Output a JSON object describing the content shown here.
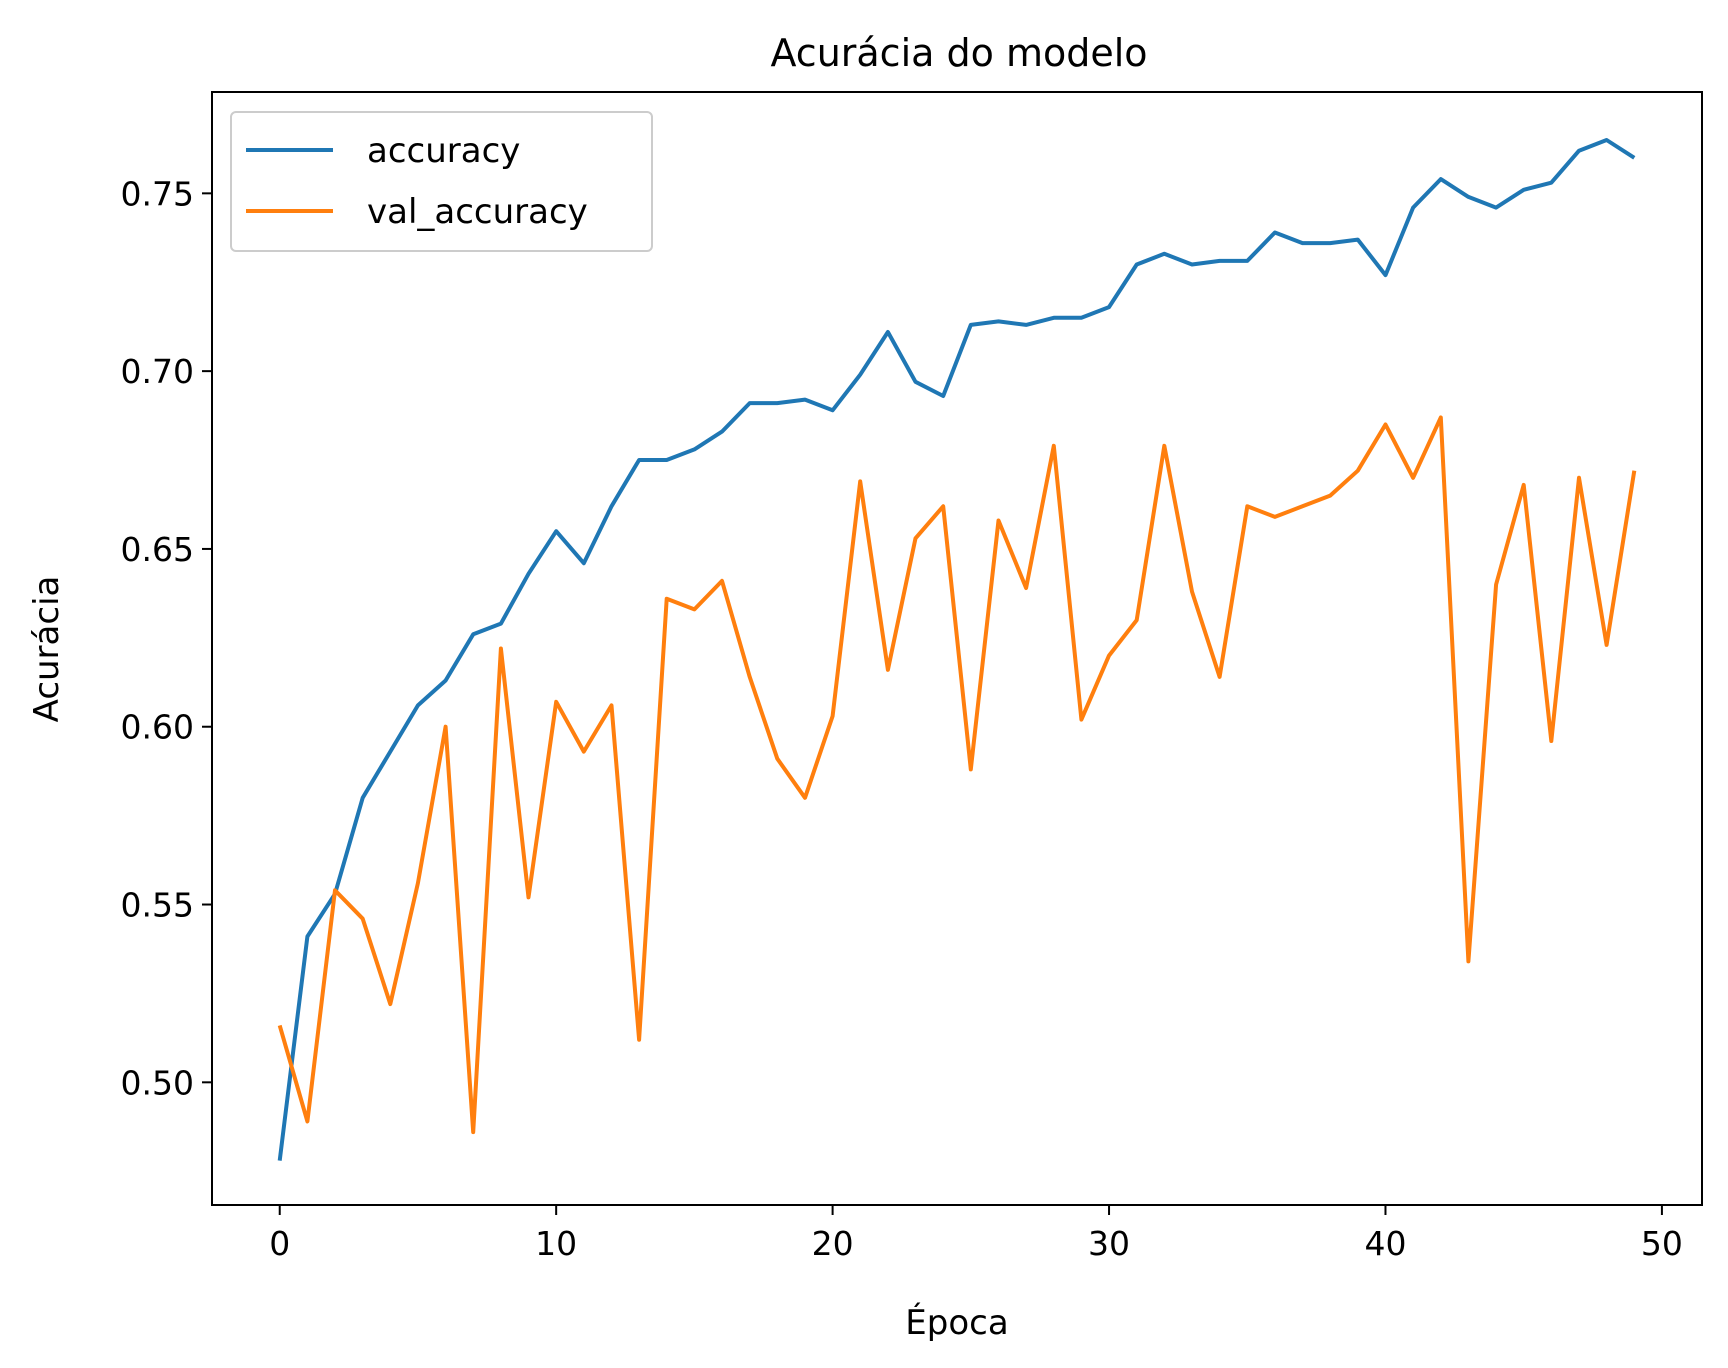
{
  "chart_data": {
    "type": "line",
    "title": "Acurácia do modelo",
    "xlabel": "Época",
    "ylabel": "Acurácia",
    "xlim": [
      -2.45,
      51.45
    ],
    "ylim": [
      0.4655,
      0.7785
    ],
    "x_ticks": [
      0,
      10,
      20,
      30,
      40,
      50
    ],
    "y_ticks": [
      0.5,
      0.55,
      0.6,
      0.65,
      0.7,
      0.75
    ],
    "x_tick_labels": [
      "0",
      "10",
      "20",
      "30",
      "40",
      "50"
    ],
    "y_tick_labels": [
      "0.50",
      "0.55",
      "0.60",
      "0.65",
      "0.70",
      "0.75"
    ],
    "grid": false,
    "legend": "upper left",
    "x": [
      0,
      1,
      2,
      3,
      4,
      5,
      6,
      7,
      8,
      9,
      10,
      11,
      12,
      13,
      14,
      15,
      16,
      17,
      18,
      19,
      20,
      21,
      22,
      23,
      24,
      25,
      26,
      27,
      28,
      29,
      30,
      31,
      32,
      33,
      34,
      35,
      36,
      37,
      38,
      39,
      40,
      41,
      42,
      43,
      44,
      45,
      46,
      47,
      48,
      49
    ],
    "series": [
      {
        "name": "accuracy",
        "color": "#1f77b4",
        "values": [
          0.478,
          0.541,
          0.553,
          0.58,
          0.593,
          0.606,
          0.613,
          0.626,
          0.629,
          0.643,
          0.655,
          0.646,
          0.662,
          0.675,
          0.675,
          0.678,
          0.683,
          0.691,
          0.691,
          0.692,
          0.689,
          0.699,
          0.711,
          0.697,
          0.693,
          0.713,
          0.714,
          0.713,
          0.715,
          0.715,
          0.718,
          0.73,
          0.733,
          0.73,
          0.731,
          0.731,
          0.739,
          0.736,
          0.736,
          0.737,
          0.727,
          0.746,
          0.754,
          0.749,
          0.746,
          0.751,
          0.753,
          0.762,
          0.765,
          0.76
        ]
      },
      {
        "name": "val_accuracy",
        "color": "#ff7f0e",
        "values": [
          0.516,
          0.489,
          0.554,
          0.546,
          0.522,
          0.556,
          0.6,
          0.486,
          0.622,
          0.552,
          0.607,
          0.593,
          0.606,
          0.512,
          0.636,
          0.633,
          0.641,
          0.614,
          0.591,
          0.58,
          0.603,
          0.669,
          0.616,
          0.653,
          0.662,
          0.588,
          0.658,
          0.639,
          0.679,
          0.602,
          0.62,
          0.63,
          0.679,
          0.638,
          0.614,
          0.662,
          0.659,
          0.662,
          0.665,
          0.672,
          0.685,
          0.67,
          0.687,
          0.534,
          0.64,
          0.668,
          0.596,
          0.67,
          0.623,
          0.672
        ]
      }
    ]
  }
}
